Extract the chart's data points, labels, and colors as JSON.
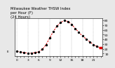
{
  "title": "Milwaukee Weather THSW Index\nper Hour (F)\n(24 Hours)",
  "hours": [
    0,
    1,
    2,
    3,
    4,
    5,
    6,
    7,
    8,
    9,
    10,
    11,
    12,
    13,
    14,
    15,
    16,
    17,
    18,
    19,
    20,
    21,
    22,
    23
  ],
  "values": [
    15,
    13,
    12,
    11,
    11,
    12,
    14,
    19,
    29,
    43,
    57,
    68,
    76,
    80,
    78,
    72,
    63,
    55,
    47,
    41,
    35,
    29,
    25,
    22
  ],
  "line_color": "#dd0000",
  "marker_color": "#000000",
  "bg_color": "#e8e8e8",
  "plot_bg": "#ffffff",
  "grid_color": "#999999",
  "ylim": [
    5,
    85
  ],
  "yticks": [
    10,
    20,
    30,
    40,
    50,
    60,
    70,
    80
  ],
  "title_fontsize": 3.8,
  "tick_fontsize": 3.2,
  "vgrid_hours": [
    0,
    3,
    6,
    9,
    12,
    15,
    18,
    21
  ]
}
